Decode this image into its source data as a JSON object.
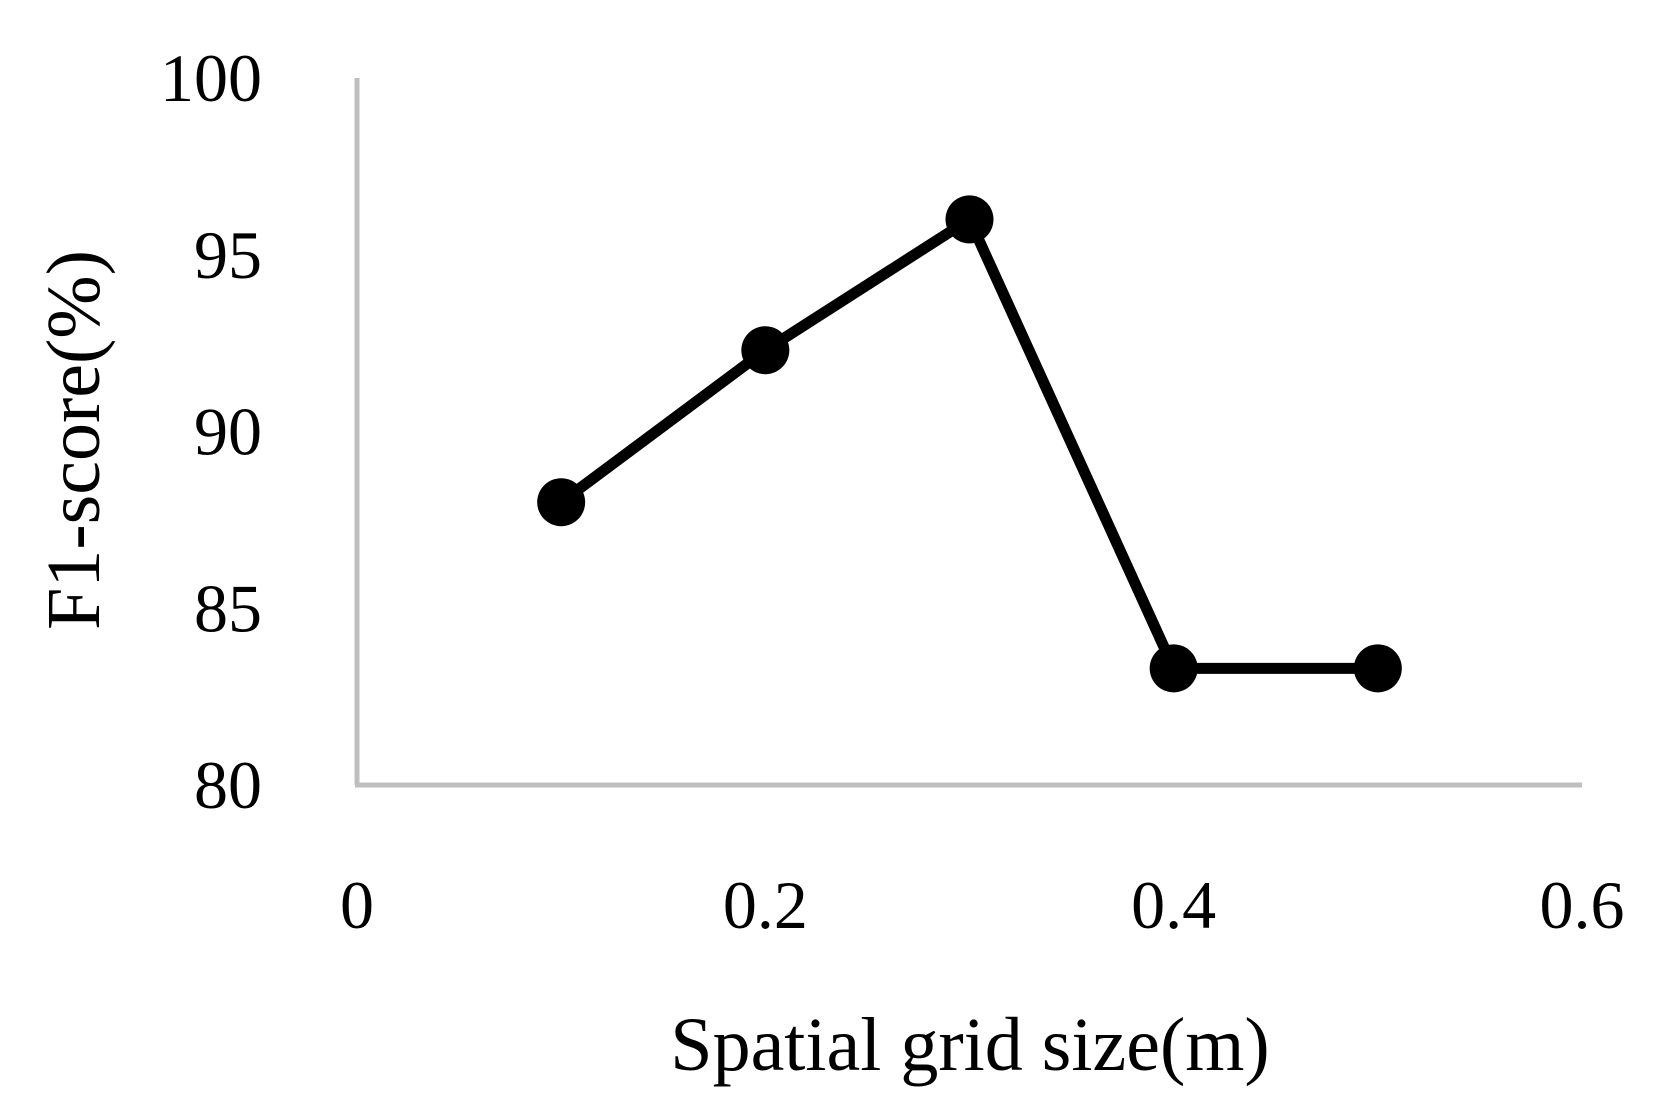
{
  "chart_data": {
    "type": "line",
    "title": "",
    "xlabel": "Spatial grid size(m)",
    "ylabel": "F1-score(%)",
    "xlim": [
      0,
      0.6
    ],
    "ylim": [
      80,
      100
    ],
    "x_ticks": [
      "0",
      "0.2",
      "0.4",
      "0.6"
    ],
    "y_ticks": [
      "80",
      "85",
      "90",
      "95",
      "100"
    ],
    "grid": false,
    "legend": "none",
    "series": [
      {
        "x": [
          0.1,
          0.2,
          0.3,
          0.4,
          0.5
        ],
        "values": [
          88.0,
          92.3,
          96.0,
          83.3,
          83.3
        ],
        "color": "#000000",
        "marker": "circle"
      }
    ],
    "axis_color": "#bfbfbf"
  }
}
